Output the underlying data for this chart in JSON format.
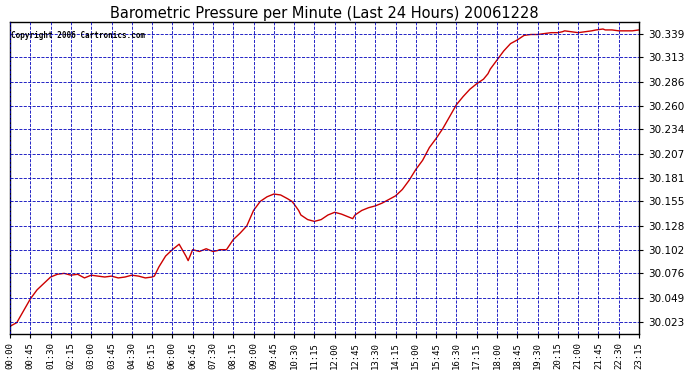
{
  "title": "Barometric Pressure per Minute (Last 24 Hours) 20061228",
  "copyright": "Copyright 2006 Cartronics.com",
  "line_color": "#cc0000",
  "background_color": "#ffffff",
  "plot_bg_color": "#ffffff",
  "grid_color": "#0000bb",
  "yticks": [
    30.023,
    30.049,
    30.076,
    30.102,
    30.128,
    30.155,
    30.181,
    30.207,
    30.234,
    30.26,
    30.286,
    30.313,
    30.339
  ],
  "ylim": [
    30.01,
    30.352
  ],
  "xtick_labels": [
    "00:00",
    "00:45",
    "01:30",
    "02:15",
    "03:00",
    "03:45",
    "04:30",
    "05:15",
    "06:00",
    "06:45",
    "07:30",
    "08:15",
    "09:00",
    "09:45",
    "10:30",
    "11:15",
    "12:00",
    "12:45",
    "13:30",
    "14:15",
    "15:00",
    "15:45",
    "16:30",
    "17:15",
    "18:00",
    "18:45",
    "19:30",
    "20:15",
    "21:00",
    "21:45",
    "22:30",
    "23:15"
  ],
  "data_points": [
    [
      0,
      30.018
    ],
    [
      15,
      30.022
    ],
    [
      30,
      30.035
    ],
    [
      45,
      30.048
    ],
    [
      60,
      30.058
    ],
    [
      75,
      30.065
    ],
    [
      90,
      30.072
    ],
    [
      105,
      30.075
    ],
    [
      120,
      30.076
    ],
    [
      135,
      30.074
    ],
    [
      150,
      30.075
    ],
    [
      165,
      30.071
    ],
    [
      180,
      30.074
    ],
    [
      195,
      30.073
    ],
    [
      210,
      30.072
    ],
    [
      225,
      30.073
    ],
    [
      240,
      30.071
    ],
    [
      255,
      30.072
    ],
    [
      270,
      30.074
    ],
    [
      285,
      30.073
    ],
    [
      300,
      30.071
    ],
    [
      315,
      30.072
    ],
    [
      320,
      30.073
    ],
    [
      330,
      30.083
    ],
    [
      345,
      30.095
    ],
    [
      360,
      30.102
    ],
    [
      375,
      30.108
    ],
    [
      390,
      30.095
    ],
    [
      395,
      30.09
    ],
    [
      405,
      30.102
    ],
    [
      420,
      30.1
    ],
    [
      435,
      30.103
    ],
    [
      450,
      30.1
    ],
    [
      460,
      30.101
    ],
    [
      465,
      30.102
    ],
    [
      480,
      30.102
    ],
    [
      495,
      30.113
    ],
    [
      510,
      30.12
    ],
    [
      525,
      30.128
    ],
    [
      540,
      30.145
    ],
    [
      555,
      30.155
    ],
    [
      570,
      30.16
    ],
    [
      585,
      30.163
    ],
    [
      600,
      30.162
    ],
    [
      615,
      30.158
    ],
    [
      625,
      30.155
    ],
    [
      630,
      30.152
    ],
    [
      640,
      30.145
    ],
    [
      645,
      30.14
    ],
    [
      660,
      30.135
    ],
    [
      675,
      30.133
    ],
    [
      690,
      30.135
    ],
    [
      705,
      30.14
    ],
    [
      720,
      30.143
    ],
    [
      735,
      30.141
    ],
    [
      750,
      30.138
    ],
    [
      760,
      30.136
    ],
    [
      765,
      30.14
    ],
    [
      780,
      30.145
    ],
    [
      795,
      30.148
    ],
    [
      810,
      30.15
    ],
    [
      825,
      30.153
    ],
    [
      840,
      30.157
    ],
    [
      855,
      30.161
    ],
    [
      870,
      30.168
    ],
    [
      885,
      30.178
    ],
    [
      900,
      30.19
    ],
    [
      915,
      30.2
    ],
    [
      930,
      30.214
    ],
    [
      945,
      30.224
    ],
    [
      960,
      30.235
    ],
    [
      975,
      30.248
    ],
    [
      990,
      30.261
    ],
    [
      1005,
      30.27
    ],
    [
      1020,
      30.278
    ],
    [
      1035,
      30.284
    ],
    [
      1050,
      30.289
    ],
    [
      1060,
      30.295
    ],
    [
      1065,
      30.3
    ],
    [
      1080,
      30.31
    ],
    [
      1095,
      30.32
    ],
    [
      1110,
      30.328
    ],
    [
      1125,
      30.332
    ],
    [
      1140,
      30.337
    ],
    [
      1155,
      30.338
    ],
    [
      1170,
      30.338
    ],
    [
      1185,
      30.339
    ],
    [
      1200,
      30.34
    ],
    [
      1215,
      30.34
    ],
    [
      1225,
      30.341
    ],
    [
      1230,
      30.342
    ],
    [
      1245,
      30.341
    ],
    [
      1260,
      30.34
    ],
    [
      1275,
      30.341
    ],
    [
      1290,
      30.342
    ],
    [
      1300,
      30.343
    ],
    [
      1315,
      30.344
    ],
    [
      1320,
      30.343
    ],
    [
      1335,
      30.343
    ],
    [
      1350,
      30.342
    ],
    [
      1365,
      30.342
    ],
    [
      1380,
      30.342
    ],
    [
      1395,
      30.343
    ],
    [
      1410,
      30.344
    ],
    [
      1415,
      30.344
    ],
    [
      1425,
      30.344
    ],
    [
      1430,
      30.343
    ],
    [
      1435,
      30.344
    ]
  ]
}
